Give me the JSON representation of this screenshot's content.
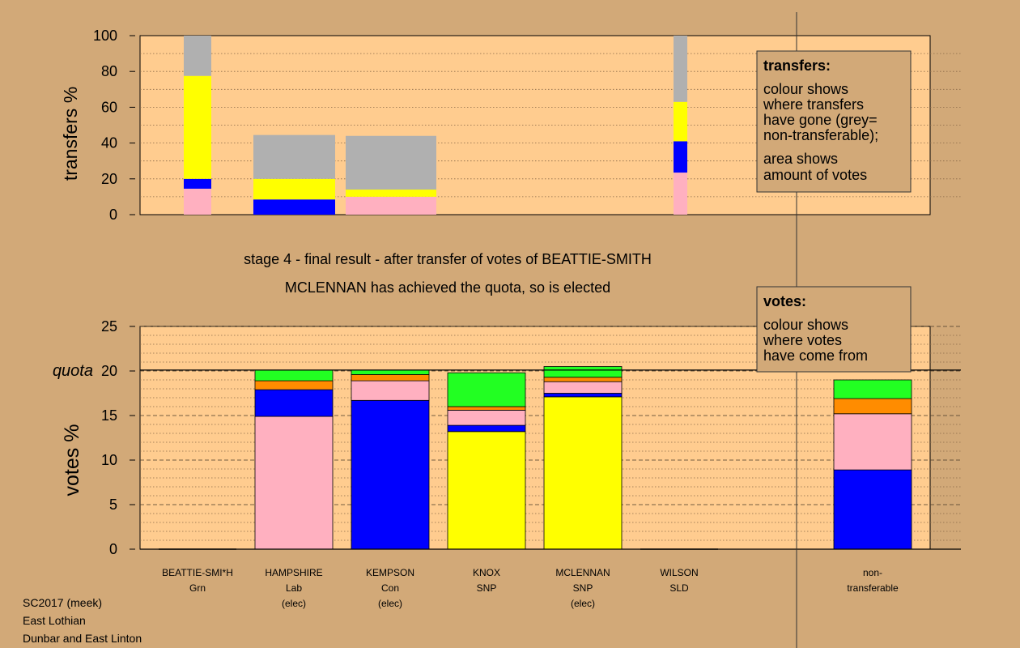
{
  "headings": {
    "stage": "stage 4 - final result - after transfer of votes of BEATTIE-SMITH",
    "elected": "MCLENNAN has achieved the quota, so is elected"
  },
  "footer": {
    "line1": "SC2017 (meek)",
    "line2": "East Lothian",
    "line3": "Dunbar and East Linton"
  },
  "legend": {
    "transfers": {
      "title": "transfers:",
      "lines1": [
        "colour shows",
        "where transfers",
        "have gone (grey=",
        "non-transferable);"
      ],
      "lines2": [
        "area shows",
        "amount of votes"
      ]
    },
    "votes": {
      "title": "votes:",
      "lines1": [
        "colour shows",
        "where votes",
        "have come from"
      ]
    }
  },
  "colors": {
    "background": "#d2a978",
    "plot_area": "#ffcc8f",
    "Grn": "#22ff22",
    "Lab": "#ffb0c0",
    "Con": "#0000ff",
    "SNP": "#ffff00",
    "SLD": "#ff8c00",
    "nontransferable": "#b0b0b0"
  },
  "chart_data": [
    {
      "type": "bar",
      "stacked": true,
      "ylabel": "transfers %",
      "ylim": [
        0,
        100
      ],
      "yticks": [
        0,
        20,
        40,
        60,
        80,
        100
      ],
      "grid": "dotted horizontal",
      "bars": [
        {
          "name": "BEATTIE-SMI*H",
          "segments": [
            {
              "party": "Lab",
              "value": 14.5
            },
            {
              "party": "Con",
              "value": 5.5
            },
            {
              "party": "SNP",
              "value": 57.5
            },
            {
              "party": "nontransferable",
              "value": 22.5
            }
          ]
        },
        {
          "name": "HAMPSHIRE",
          "segments": [
            {
              "party": "Con",
              "value": 8.5
            },
            {
              "party": "SNP",
              "value": 11.5
            },
            {
              "party": "nontransferable",
              "value": 24.5
            }
          ]
        },
        {
          "name": "KEMPSON",
          "segments": [
            {
              "party": "Lab",
              "value": 10.0
            },
            {
              "party": "SNP",
              "value": 4.0
            },
            {
              "party": "nontransferable",
              "value": 30.0
            }
          ]
        },
        {
          "name": "WILSON",
          "segments": [
            {
              "party": "Lab",
              "value": 23.5
            },
            {
              "party": "Con",
              "value": 17.5
            },
            {
              "party": "SNP",
              "value": 22.0
            },
            {
              "party": "nontransferable",
              "value": 37.0
            }
          ]
        }
      ]
    },
    {
      "type": "bar",
      "stacked": true,
      "ylabel": "votes %",
      "ylim": [
        0,
        25
      ],
      "yticks": [
        0,
        5,
        10,
        15,
        20,
        25
      ],
      "quota": 20.1,
      "quota_label": "quota",
      "grid": "dotted horizontal",
      "categories": [
        {
          "name": "BEATTIE-SMI*H",
          "party": "Grn",
          "status": ""
        },
        {
          "name": "HAMPSHIRE",
          "party": "Lab",
          "status": "(elec)"
        },
        {
          "name": "KEMPSON",
          "party": "Con",
          "status": "(elec)"
        },
        {
          "name": "KNOX",
          "party": "SNP",
          "status": ""
        },
        {
          "name": "MCLENNAN",
          "party": "SNP",
          "status": "(elec)"
        },
        {
          "name": "WILSON",
          "party": "SLD",
          "status": ""
        },
        {
          "name": "non-",
          "party": "transferable",
          "status": ""
        }
      ],
      "bars": [
        {
          "name": "BEATTIE-SMI*H",
          "segments": []
        },
        {
          "name": "HAMPSHIRE",
          "segments": [
            {
              "party": "Lab",
              "value": 14.9
            },
            {
              "party": "Con",
              "value": 3.0
            },
            {
              "party": "SLD",
              "value": 1.0
            },
            {
              "party": "Grn",
              "value": 1.2
            }
          ]
        },
        {
          "name": "KEMPSON",
          "segments": [
            {
              "party": "Con",
              "value": 16.7
            },
            {
              "party": "Lab",
              "value": 2.2
            },
            {
              "party": "SLD",
              "value": 0.7
            },
            {
              "party": "Grn",
              "value": 0.5
            }
          ]
        },
        {
          "name": "KNOX",
          "segments": [
            {
              "party": "SNP",
              "value": 13.2
            },
            {
              "party": "Con",
              "value": 0.7
            },
            {
              "party": "Lab",
              "value": 1.7
            },
            {
              "party": "SLD",
              "value": 0.4
            },
            {
              "party": "Grn",
              "value": 3.8
            }
          ]
        },
        {
          "name": "MCLENNAN",
          "segments": [
            {
              "party": "SNP",
              "value": 17.1
            },
            {
              "party": "Con",
              "value": 0.4
            },
            {
              "party": "Lab",
              "value": 1.3
            },
            {
              "party": "SLD",
              "value": 0.5
            },
            {
              "party": "Grn",
              "value": 1.2
            }
          ]
        },
        {
          "name": "WILSON",
          "segments": []
        },
        {
          "name": "non-",
          "segments": [
            {
              "party": "Con",
              "value": 8.9
            },
            {
              "party": "Lab",
              "value": 6.3
            },
            {
              "party": "SLD",
              "value": 1.7
            },
            {
              "party": "Grn",
              "value": 2.1
            }
          ]
        }
      ]
    }
  ]
}
